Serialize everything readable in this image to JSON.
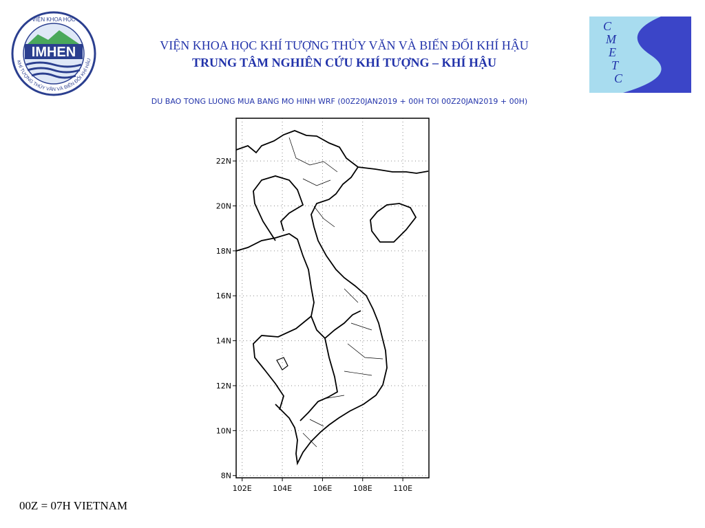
{
  "header": {
    "institute": "VIỆN KHOA HỌC KHÍ TƯỢNG THỦY VĂN VÀ BIẾN ĐỔI KHÍ HẬU",
    "center": "TRUNG TÂM NGHIÊN CỨU KHÍ TƯỢNG – KHÍ HẬU"
  },
  "logo_left": {
    "top": "VIỆN KHOA HỌC",
    "name": "IMHEN",
    "ring": "KHÍ TƯỢNG THỦY VĂN VÀ BIẾN ĐỔI KHÍ HẬU"
  },
  "logo_right": {
    "letters": [
      "C",
      "M",
      "E",
      "T",
      "C"
    ]
  },
  "map": {
    "title": "DU BAO TONG LUONG MUA BANG MO HINH WRF (00Z20JAN2019 + 00H TOI 00Z20JAN2019 + 00H)",
    "xlim": [
      101.7,
      111.3
    ],
    "ylim": [
      7.9,
      23.9
    ],
    "lat_ticks": [
      {
        "value": 8,
        "label": "8N"
      },
      {
        "value": 10,
        "label": "10N"
      },
      {
        "value": 12,
        "label": "12N"
      },
      {
        "value": 14,
        "label": "14N"
      },
      {
        "value": 16,
        "label": "16N"
      },
      {
        "value": 18,
        "label": "18N"
      },
      {
        "value": 20,
        "label": "20N"
      },
      {
        "value": 22,
        "label": "22N"
      }
    ],
    "lon_ticks": [
      {
        "value": 102,
        "label": "102E"
      },
      {
        "value": 104,
        "label": "104E"
      },
      {
        "value": 106,
        "label": "106E"
      },
      {
        "value": 108,
        "label": "108E"
      },
      {
        "value": 110,
        "label": "110E"
      }
    ]
  },
  "footer": "00Z = 07H VIETNAM"
}
